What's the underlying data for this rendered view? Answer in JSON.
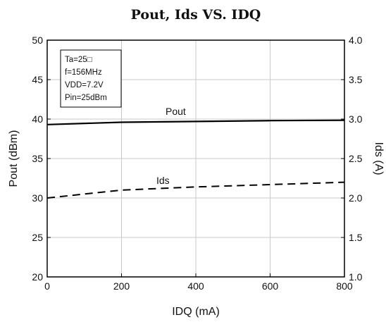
{
  "chart_data": {
    "type": "line",
    "title": "Pout, Ids VS. IDQ",
    "xlabel": "IDQ (mA)",
    "ylabel": "Pout (dBm)",
    "y2label": "Ids (A)",
    "xlim": [
      0,
      800
    ],
    "ylim": [
      20,
      50
    ],
    "y2lim": [
      1.0,
      4.0
    ],
    "grid": true,
    "x_ticks": [
      "0",
      "200",
      "400",
      "600",
      "800"
    ],
    "y_ticks": [
      "20",
      "25",
      "30",
      "35",
      "40",
      "45",
      "50"
    ],
    "y2_ticks": [
      "1.0",
      "1.5",
      "2.0",
      "2.5",
      "3.0",
      "3.5",
      "4.0"
    ],
    "series": [
      {
        "name": "Pout",
        "axis": "left",
        "style": "solid",
        "color": "#000000",
        "x": [
          0,
          200,
          400,
          600,
          800
        ],
        "y": [
          39.3,
          39.6,
          39.7,
          39.8,
          39.85
        ]
      },
      {
        "name": "Ids",
        "axis": "right",
        "style": "dashed",
        "color": "#000000",
        "x": [
          0,
          200,
          400,
          600,
          800
        ],
        "y": [
          2.0,
          2.1,
          2.14,
          2.17,
          2.2
        ]
      }
    ],
    "annotation_lines": [
      "Ta=25□",
      "f=156MHz",
      "VDD=7.2V",
      "Pin=25dBm"
    ]
  }
}
